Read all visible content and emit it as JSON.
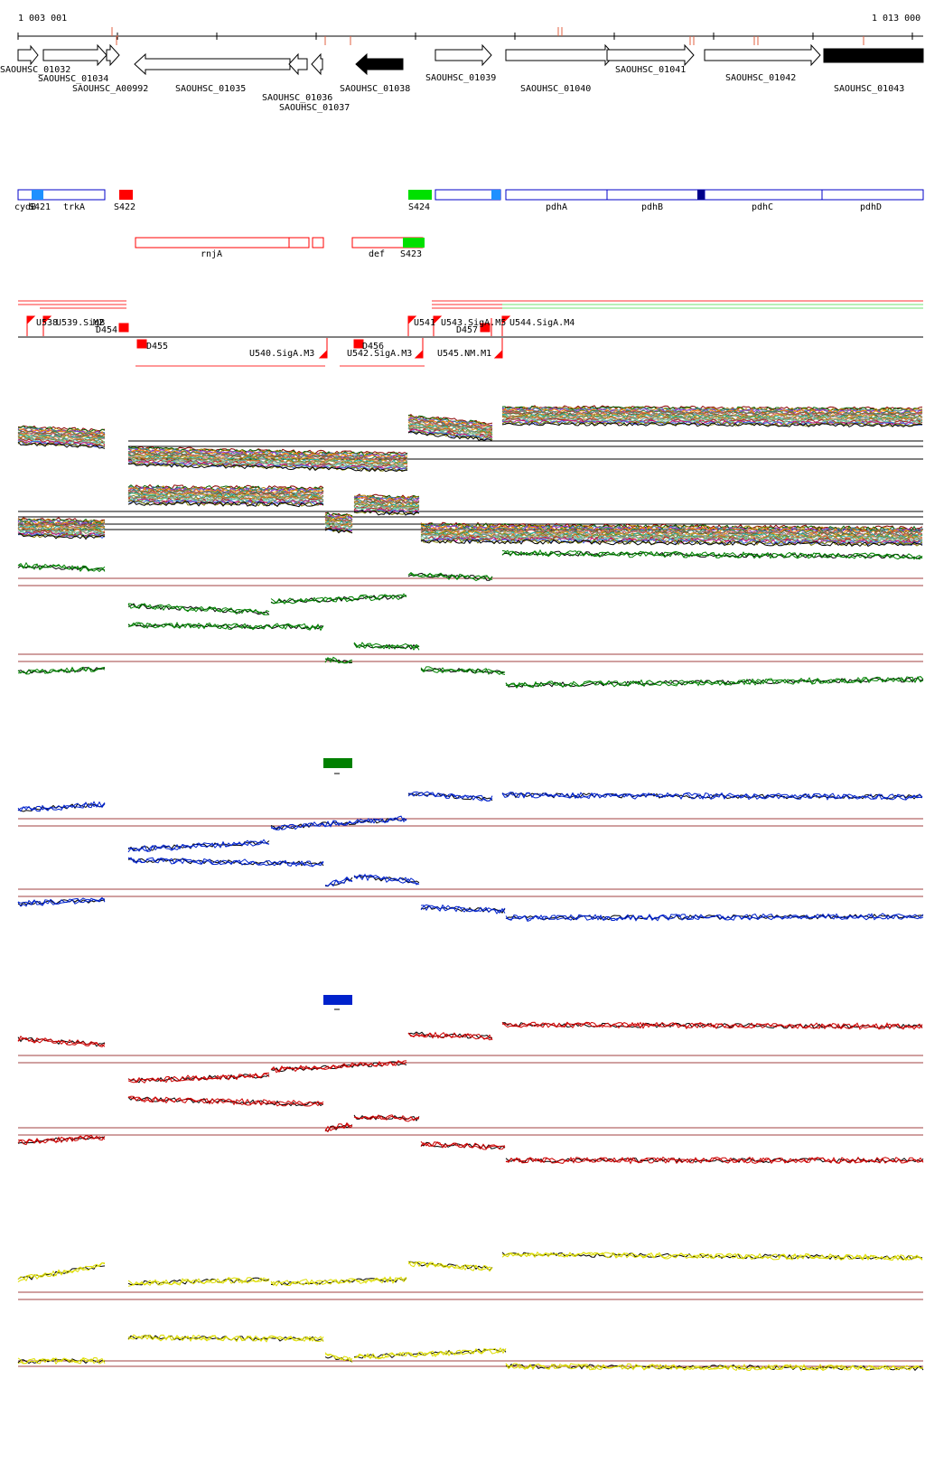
{
  "ruler": {
    "start_label": "1 003 001",
    "end_label": "1 013 000"
  },
  "colors": {
    "gene_outline": "#000000",
    "gene_fill_highlight": "#000000",
    "feature_blue": "#0000c8",
    "feature_red": "#ff0000",
    "feature_green": "#00e000",
    "feature_lightblue": "#1e90ff",
    "feature_darkblue": "#00008b",
    "tile_green": "#008000",
    "tile_blue": "#0022cc",
    "tile_red": "#cc0000",
    "tile_yellow": "#dddd00",
    "threshold_line": "#a04040"
  },
  "genes": [
    {
      "id": "SAOUHSC_01032",
      "strand": "+"
    },
    {
      "id": "SAOUHSC_01034",
      "strand": "+"
    },
    {
      "id": "SAOUHSC_A00992",
      "strand": "+"
    },
    {
      "id": "SAOUHSC_01035",
      "strand": "-"
    },
    {
      "id": "SAOUHSC_01036",
      "strand": "-"
    },
    {
      "id": "SAOUHSC_01037",
      "strand": "-"
    },
    {
      "id": "SAOUHSC_01038",
      "strand": "-",
      "highlighted": true
    },
    {
      "id": "SAOUHSC_01039",
      "strand": "+"
    },
    {
      "id": "SAOUHSC_01040",
      "strand": "+"
    },
    {
      "id": "SAOUHSC_01041",
      "strand": "+"
    },
    {
      "id": "SAOUHSC_01042",
      "strand": "+"
    },
    {
      "id": "SAOUHSC_01043",
      "strand": "+",
      "highlighted": true
    }
  ],
  "blue_features": [
    "cydB",
    "S421",
    "trkA",
    "S422",
    "S424",
    "pdhA",
    "pdhB",
    "pdhC",
    "pdhD"
  ],
  "red_features": [
    "rnjA",
    "def",
    "S423"
  ],
  "regulatory": [
    "U538",
    "U539.SigB",
    "M2",
    "D454",
    "D455",
    "U540.SigA.M3",
    "D456",
    "U542.SigA.M3",
    "U541",
    "U543.SigA.M5",
    "D457",
    "U544.SigA.M4",
    "U545.NM.M1"
  ],
  "tracks": {
    "overview": {
      "series_count": 24
    },
    "green_group": {
      "legend_color": "#008000"
    },
    "blue_group": {
      "legend_color": "#0022cc"
    },
    "red_group": {
      "legend_color": "#cc0000"
    },
    "yellow_group": {
      "legend_color": "#dddd00"
    }
  }
}
